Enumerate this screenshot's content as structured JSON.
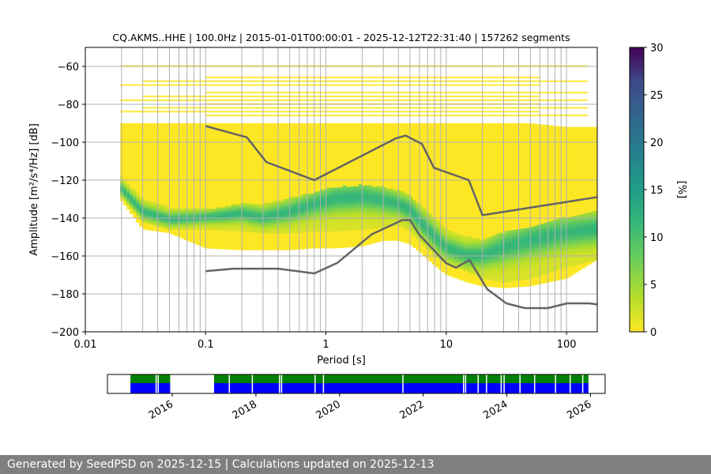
{
  "chart_data": [
    {
      "type": "heatmap",
      "title": "CQ.AKMS..HHE | 100.0Hz | 2015-01-01T00:00:01 - 2025-12-12T22:31:40 | 157262 segments",
      "xlabel": "Period [s]",
      "ylabel": "Amplitude [m²/s⁴/Hz] [dB]",
      "x_scale": "log",
      "xlim": [
        0.01,
        180
      ],
      "ylim": [
        -200,
        -50
      ],
      "x_ticks": [
        0.01,
        0.1,
        1,
        10,
        100
      ],
      "x_tick_labels": [
        "0.01",
        "0.1",
        "1",
        "10",
        "100"
      ],
      "y_ticks": [
        -200,
        -180,
        -160,
        -140,
        -120,
        -100,
        -80,
        -60
      ],
      "y_tick_labels": [
        "−200",
        "−180",
        "−160",
        "−140",
        "−120",
        "−100",
        "−80",
        "−60"
      ],
      "grid": true,
      "colormap": "viridis_r",
      "colorbar": {
        "label": "[%]",
        "range": [
          0,
          30
        ],
        "ticks": [
          0,
          5,
          10,
          15,
          20,
          25,
          30
        ],
        "tick_labels": [
          "0",
          "5",
          "10",
          "15",
          "20",
          "25",
          "30"
        ]
      },
      "density": {
        "period": [
          0.0195,
          0.03,
          0.05,
          0.1,
          0.2,
          0.3,
          0.5,
          0.8,
          1.2,
          2,
          3,
          4,
          5,
          6,
          8,
          10,
          15,
          20,
          30,
          50,
          100,
          180
        ],
        "mode_db": [
          -124,
          -137,
          -141,
          -140,
          -138,
          -140,
          -137,
          -133,
          -130,
          -129,
          -131,
          -133,
          -136,
          -142,
          -150,
          -156,
          -160,
          -160,
          -156,
          -152,
          -148,
          -146
        ],
        "p10_db": [
          -128,
          -142,
          -146,
          -146,
          -147,
          -148,
          -148,
          -147,
          -147,
          -146,
          -145,
          -144,
          -147,
          -152,
          -160,
          -164,
          -168,
          -172,
          -174,
          -172,
          -166,
          -162
        ],
        "p90_db": [
          -118,
          -130,
          -135,
          -136,
          -133,
          -133,
          -130,
          -127,
          -124,
          -123,
          -124,
          -126,
          -128,
          -133,
          -140,
          -146,
          -150,
          -152,
          -148,
          -145,
          -140,
          -137
        ],
        "lower_db": [
          -130,
          -146,
          -148,
          -156,
          -157,
          -157,
          -157,
          -156,
          -156,
          -155,
          -152,
          -152,
          -154,
          -158,
          -165,
          -170,
          -174,
          -176,
          -177,
          -176,
          -172,
          -162
        ],
        "upper_db": [
          -90,
          -90,
          -90,
          -90,
          -90,
          -90,
          -90,
          -90,
          -90,
          -90,
          -90,
          -90,
          -90,
          -90,
          -90,
          -90,
          -90,
          -90,
          -90,
          -90,
          -92,
          -92
        ]
      },
      "series": [
        {
          "name": "NHNM",
          "x": [
            0.1,
            0.22,
            0.32,
            0.8,
            3.8,
            4.6,
            6.3,
            7.9,
            15.4,
            20,
            354.8
          ],
          "y": [
            -91.5,
            -97.4,
            -110.5,
            -120,
            -98,
            -96.5,
            -101,
            -113.5,
            -120,
            -138.5,
            -126
          ]
        },
        {
          "name": "NLNM",
          "x": [
            0.1,
            0.17,
            0.4,
            0.8,
            1.24,
            2.4,
            4.3,
            5,
            6,
            10,
            12,
            15.6,
            21.9,
            31.6,
            45,
            70,
            101,
            154,
            328
          ],
          "y": [
            -168,
            -166.7,
            -166.7,
            -169.2,
            -163.7,
            -148.6,
            -141.1,
            -141.1,
            -149,
            -163.8,
            -166.2,
            -162.1,
            -177.5,
            -185,
            -187.5,
            -187.5,
            -185,
            -185,
            -187.5
          ]
        }
      ],
      "scatter_lines_db": [
        -60,
        -66,
        -68,
        -70,
        -74,
        -76,
        -78,
        -80,
        -82,
        -84,
        -86
      ]
    },
    {
      "type": "timeline",
      "x_ticks": [
        2016,
        2018,
        2020,
        2022,
        2024,
        2026
      ],
      "x_tick_labels": [
        "2016",
        "2018",
        "2020",
        "2022",
        "2024",
        "2026"
      ],
      "xlim": [
        2014.45,
        2026.35
      ],
      "top_color": "#008000",
      "bottom_color": "#0000ff",
      "coverage_intervals": [
        [
          2015.0,
          2015.95
        ],
        [
          2017.0,
          2025.95
        ]
      ],
      "gaps": [
        2015.6,
        2015.65,
        2017.35,
        2017.9,
        2018.55,
        2018.6,
        2019.4,
        2019.6,
        2021.5,
        2022.95,
        2023.0,
        2023.3,
        2023.5,
        2023.85,
        2023.92,
        2024.3,
        2024.65,
        2025.15,
        2025.5,
        2025.8
      ]
    }
  ],
  "footer": {
    "text": "Generated by SeedPSD on 2025-12-15 | Calculations updated on 2025-12-13"
  },
  "colors": {
    "nm_line": "#646464",
    "grid": "#b0b0b0",
    "footer_bg": "#7f7f7f"
  }
}
